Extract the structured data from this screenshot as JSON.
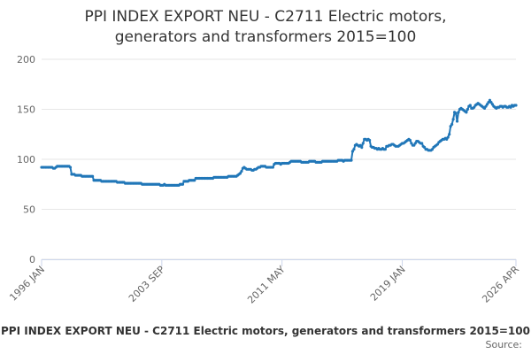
{
  "chart_data": {
    "type": "line",
    "title": "PPI INDEX EXPORT NEU - C2711 Electric motors, generators and transformers 2015=100",
    "source": "Source:",
    "categories": [
      "1996 JAN",
      null,
      null,
      null,
      null,
      null,
      null,
      null,
      null,
      null,
      null,
      null,
      null,
      null,
      null,
      null,
      null,
      null,
      null,
      null,
      null,
      null,
      null,
      null,
      null,
      null,
      null,
      null,
      null,
      null,
      null,
      null,
      null,
      null,
      null,
      null,
      null,
      null,
      null,
      null,
      null,
      null,
      null,
      null,
      null,
      null,
      null,
      null,
      null,
      null,
      null,
      null,
      null,
      null,
      null,
      null,
      null,
      null,
      null,
      null,
      null,
      null,
      null,
      null,
      null,
      null,
      null,
      null,
      null,
      null,
      null,
      null,
      null,
      null,
      null,
      null,
      null,
      null,
      null,
      null,
      null,
      null,
      null,
      null,
      null,
      null,
      null,
      null,
      null,
      null,
      null,
      null,
      "2003 SEP",
      null,
      null,
      null,
      null,
      null,
      null,
      null,
      null,
      null,
      null,
      null,
      null,
      null,
      null,
      null,
      null,
      null,
      null,
      null,
      null,
      null,
      null,
      null,
      null,
      null,
      null,
      null,
      null,
      null,
      null,
      null,
      null,
      null,
      null,
      null,
      null,
      null,
      null,
      null,
      null,
      null,
      null,
      null,
      null,
      null,
      null,
      null,
      null,
      null,
      null,
      null,
      null,
      null,
      null,
      null,
      null,
      null,
      null,
      null,
      null,
      null,
      null,
      null,
      null,
      null,
      null,
      null,
      null,
      null,
      null,
      null,
      null,
      null,
      null,
      null,
      null,
      null,
      null,
      null,
      null,
      null,
      null,
      null,
      null,
      null,
      null,
      null,
      null,
      null,
      null,
      null,
      "2011 MAY",
      null,
      null,
      null,
      null,
      null,
      null,
      null,
      null,
      null,
      null,
      null,
      null,
      null,
      null,
      null,
      null,
      null,
      null,
      null,
      null,
      null,
      null,
      null,
      null,
      null,
      null,
      null,
      null,
      null,
      null,
      null,
      null,
      null,
      null,
      null,
      null,
      null,
      null,
      null,
      null,
      null,
      null,
      null,
      null,
      null,
      null,
      null,
      null,
      null,
      null,
      null,
      null,
      null,
      null,
      null,
      null,
      null,
      null,
      null,
      null,
      null,
      null,
      null,
      null,
      null,
      null,
      null,
      null,
      null,
      null,
      null,
      null,
      null,
      null,
      null,
      null,
      null,
      null,
      null,
      null,
      null,
      null,
      null,
      null,
      null,
      null,
      null,
      null,
      null,
      null,
      null,
      "2019 JAN",
      null,
      null,
      null,
      null,
      null,
      null,
      null,
      null,
      null,
      null,
      null,
      null,
      null,
      null,
      null,
      null,
      null,
      null,
      null,
      null,
      null,
      null,
      null,
      null,
      null,
      null,
      null,
      null,
      null,
      null,
      null,
      null,
      null,
      null,
      null,
      null,
      null,
      null,
      null,
      null,
      null,
      null,
      null,
      null,
      null,
      null,
      null,
      null,
      null,
      null,
      null,
      null,
      null,
      null,
      null,
      null,
      null,
      null,
      null,
      null,
      null,
      null,
      null,
      null,
      null,
      null,
      null,
      null,
      null,
      null,
      null,
      null,
      null,
      null,
      null,
      null,
      null,
      null,
      null,
      null,
      null,
      null,
      null,
      null,
      null,
      null,
      "2026 APR"
    ],
    "series": [
      {
        "name": "PPI INDEX EXPORT NEU - C2711 Electric motors, generators and transformers 2015=100",
        "color": "#2177b8",
        "values": [
          92,
          92,
          92,
          92,
          92,
          92,
          92,
          92,
          92,
          91,
          91,
          92,
          93,
          93,
          93,
          93,
          93,
          93,
          93,
          93,
          93,
          93,
          92,
          85,
          85,
          85,
          84,
          84,
          84,
          84,
          84,
          83,
          83,
          83,
          83,
          83,
          83,
          83,
          83,
          83,
          79,
          79,
          79,
          79,
          79,
          79,
          78,
          78,
          78,
          78,
          78,
          78,
          78,
          78,
          78,
          78,
          78,
          78,
          77,
          77,
          77,
          77,
          77,
          77,
          76,
          76,
          76,
          76,
          76,
          76,
          76,
          76,
          76,
          76,
          76,
          76,
          76,
          75,
          75,
          75,
          75,
          75,
          75,
          75,
          75,
          75,
          75,
          75,
          75,
          75,
          75,
          74,
          74,
          74,
          75,
          74,
          74,
          74,
          74,
          74,
          74,
          74,
          74,
          74,
          74,
          74,
          75,
          75,
          75,
          78,
          78,
          78,
          78,
          79,
          79,
          79,
          79,
          79,
          81,
          81,
          81,
          81,
          81,
          81,
          81,
          81,
          81,
          81,
          81,
          81,
          81,
          81,
          82,
          82,
          82,
          82,
          82,
          82,
          82,
          82,
          82,
          82,
          82,
          83,
          83,
          83,
          83,
          83,
          83,
          83,
          84,
          85,
          86,
          88,
          91,
          92,
          91,
          90,
          90,
          90,
          90,
          89,
          89,
          90,
          90,
          91,
          92,
          92,
          93,
          93,
          93,
          93,
          92,
          92,
          92,
          92,
          92,
          92,
          95,
          96,
          96,
          96,
          96,
          95,
          96,
          96,
          96,
          96,
          96,
          96,
          97,
          98,
          98,
          98,
          98,
          98,
          98,
          98,
          98,
          97,
          97,
          97,
          97,
          97,
          97,
          98,
          98,
          98,
          98,
          98,
          97,
          97,
          97,
          97,
          97,
          98,
          98,
          98,
          98,
          98,
          98,
          98,
          98,
          98,
          98,
          98,
          98,
          99,
          99,
          99,
          99,
          98,
          99,
          99,
          99,
          99,
          99,
          99,
          108,
          110,
          114,
          115,
          114,
          113,
          114,
          112,
          116,
          120,
          120,
          119,
          120,
          119,
          113,
          112,
          112,
          111,
          111,
          110,
          111,
          110,
          110,
          111,
          110,
          110,
          113,
          113,
          114,
          114,
          115,
          115,
          114,
          113,
          113,
          113,
          114,
          115,
          116,
          116,
          117,
          118,
          119,
          120,
          119,
          116,
          114,
          114,
          116,
          118,
          118,
          117,
          116,
          116,
          113,
          112,
          110,
          110,
          109,
          109,
          109,
          110,
          112,
          113,
          114,
          115,
          117,
          118,
          119,
          120,
          120,
          121,
          120,
          122,
          125,
          133,
          135,
          140,
          147,
          146,
          138,
          147,
          150,
          151,
          150,
          149,
          148,
          147,
          150,
          153,
          154,
          151,
          151,
          152,
          154,
          155,
          156,
          155,
          154,
          153,
          152,
          151,
          153,
          155,
          157,
          159,
          157,
          155,
          153,
          152,
          151,
          152,
          152,
          153,
          153,
          152,
          153,
          153,
          152,
          152,
          153,
          152,
          154,
          153,
          154,
          154
        ]
      }
    ],
    "ylim": [
      0,
      200
    ],
    "yticks": [
      0,
      50,
      100,
      150,
      200
    ],
    "grid": true
  }
}
